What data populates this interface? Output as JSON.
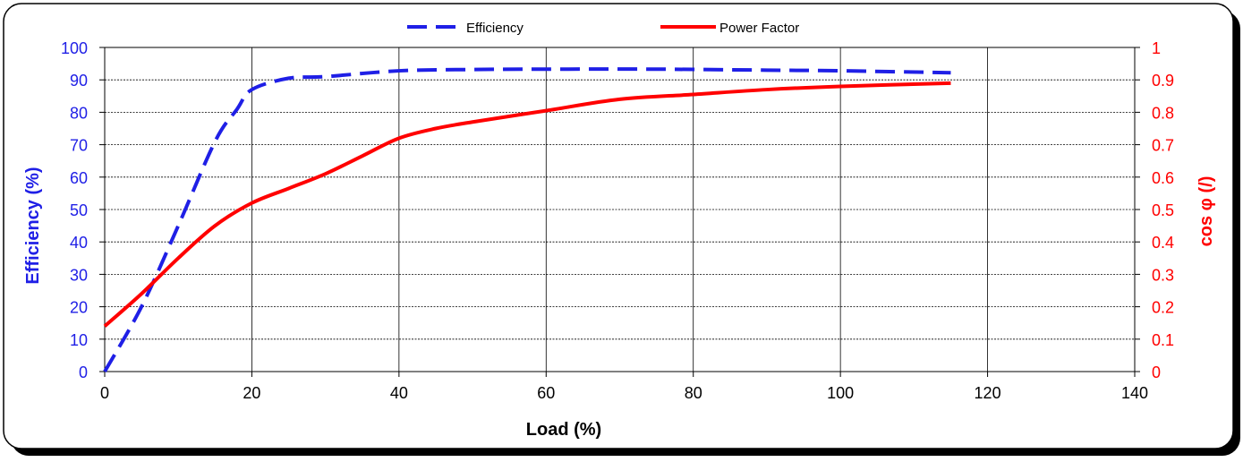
{
  "chart_data": {
    "type": "line",
    "xlabel": "Load (%)",
    "ylabel_left": "Efficiency (%)",
    "ylabel_right": "cos φ (/)",
    "xlim": [
      0,
      140
    ],
    "ylim_left": [
      0,
      100
    ],
    "ylim_right": [
      0,
      1
    ],
    "x_ticks": [
      "0",
      "20",
      "40",
      "60",
      "80",
      "100",
      "120",
      "140"
    ],
    "y_left_ticks": [
      "0",
      "10",
      "20",
      "30",
      "40",
      "50",
      "60",
      "70",
      "80",
      "90",
      "100"
    ],
    "y_right_ticks": [
      "0",
      "0.1",
      "0.2",
      "0.3",
      "0.4",
      "0.5",
      "0.6",
      "0.7",
      "0.8",
      "0.9",
      "1"
    ],
    "grid": true,
    "legend_position": "top-center",
    "series": [
      {
        "name": "Efficiency",
        "axis": "left",
        "style": "dashed",
        "color": "#1f1fe6",
        "x": [
          0,
          5,
          10,
          15,
          18,
          20,
          25,
          30,
          40,
          50,
          60,
          75,
          90,
          100,
          115
        ],
        "y": [
          0,
          20,
          45,
          71,
          81,
          87,
          90.5,
          91,
          92.8,
          93.2,
          93.3,
          93.3,
          93,
          92.8,
          92.2
        ]
      },
      {
        "name": "Power Factor",
        "axis": "right",
        "style": "solid",
        "color": "#ff0000",
        "x": [
          0,
          5,
          10,
          15,
          20,
          25,
          30,
          35,
          40,
          45,
          50,
          60,
          70,
          80,
          90,
          100,
          115
        ],
        "y": [
          0.14,
          0.24,
          0.35,
          0.45,
          0.52,
          0.565,
          0.61,
          0.665,
          0.72,
          0.75,
          0.77,
          0.805,
          0.84,
          0.855,
          0.87,
          0.88,
          0.89
        ]
      }
    ]
  }
}
